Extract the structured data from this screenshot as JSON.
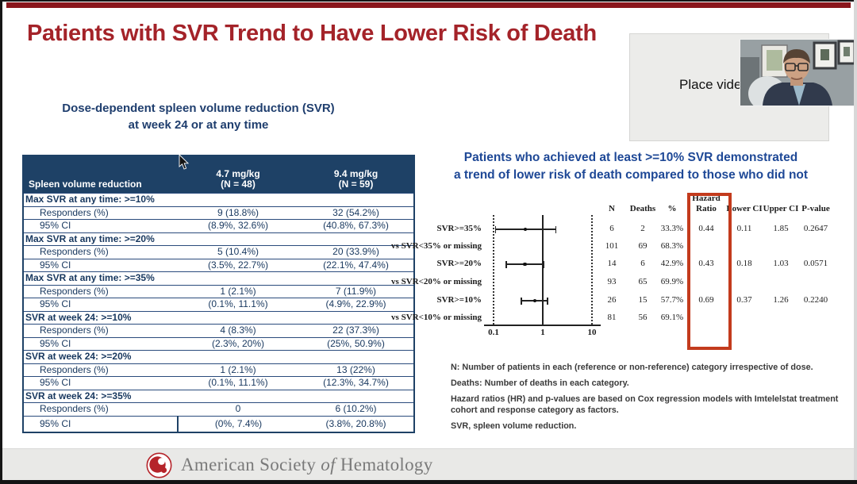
{
  "title": "Patients with SVR Trend to Have Lower Risk of Death",
  "video": {
    "placeholder_label": "Place video"
  },
  "left_panel": {
    "subtitle_line1": "Dose-dependent spleen volume reduction (SVR)",
    "subtitle_line2": "at week 24 or at any time"
  },
  "right_panel": {
    "heading_line1": "Patients who achieved at least >=10% SVR demonstrated",
    "heading_line2": "a trend of lower risk of death compared to those who did not",
    "footnotes": [
      "N: Number of patients in each (reference or non-reference) category irrespective of dose.",
      "Deaths: Number of deaths in each category.",
      "Hazard ratios (HR) and p-values are based on Cox regression models with Imtelelstat treatment cohort and response category as factors.",
      "SVR, spleen volume reduction."
    ]
  },
  "footer": {
    "org_name_pre": "American Society ",
    "org_name_italic": "of",
    "org_name_post": " Hematology"
  },
  "colors": {
    "title_red": "#a42329",
    "top_bar_red": "#8a161c",
    "table_header_navy": "#1e4166",
    "table_text_navy": "#17375e",
    "left_subtitle_blue": "#1f3e6e",
    "right_heading_blue": "#1e4896",
    "highlight_box_red": "#c33b1d",
    "footer_bg": "#e9e9e7"
  },
  "chart_data": [
    {
      "type": "table",
      "title": "Dose-dependent spleen volume reduction (SVR) at week 24 or at any time",
      "columns": [
        "Spleen volume reduction",
        "4.7 mg/kg (N = 48)",
        "9.4 mg/kg (N = 59)"
      ],
      "header": {
        "col1": "Spleen volume reduction",
        "col2_line1": "4.7 mg/kg",
        "col2_line2": "(N = 48)",
        "col3_line1": "9.4 mg/kg",
        "col3_line2": "(N = 59)"
      },
      "rows": [
        {
          "section": "Max SVR at any time: >=10%"
        },
        {
          "label": "Responders (%)",
          "values": [
            "9 (18.8%)",
            "32 (54.2%)"
          ]
        },
        {
          "label": "95% CI",
          "values": [
            "(8.9%, 32.6%)",
            "(40.8%, 67.3%)"
          ]
        },
        {
          "section": "Max SVR at any time: >=20%"
        },
        {
          "label": "Responders (%)",
          "values": [
            "5 (10.4%)",
            "20 (33.9%)"
          ]
        },
        {
          "label": "95% CI",
          "values": [
            "(3.5%, 22.7%)",
            "(22.1%, 47.4%)"
          ]
        },
        {
          "section": "Max SVR at any time: >=35%"
        },
        {
          "label": "Responders (%)",
          "values": [
            "1 (2.1%)",
            "7 (11.9%)"
          ]
        },
        {
          "label": "95% CI",
          "values": [
            "(0.1%, 11.1%)",
            "(4.9%, 22.9%)"
          ]
        },
        {
          "section": "SVR at week 24: >=10%"
        },
        {
          "label": "Responders (%)",
          "values": [
            "4 (8.3%)",
            "22 (37.3%)"
          ]
        },
        {
          "label": "95% CI",
          "values": [
            "(2.3%, 20%)",
            "(25%, 50.9%)"
          ]
        },
        {
          "section": "SVR at week 24: >=20%"
        },
        {
          "label": "Responders (%)",
          "values": [
            "1 (2.1%)",
            "13 (22%)"
          ]
        },
        {
          "label": "95% CI",
          "values": [
            "(0.1%, 11.1%)",
            "(12.3%, 34.7%)"
          ]
        },
        {
          "section": "SVR at week 24: >=35%"
        },
        {
          "label": "Responders (%)",
          "values": [
            "0",
            "6 (10.2%)"
          ]
        },
        {
          "label": "95% CI",
          "values": [
            "(0%, 7.4%)",
            "(3.8%, 20.8%)"
          ]
        }
      ]
    },
    {
      "type": "scatter",
      "subtype": "forest-plot",
      "x_axis": {
        "scale": "log10",
        "ticks": [
          "0.1",
          "1",
          "10"
        ],
        "range": [
          0.1,
          10
        ],
        "reference_line": 1
      },
      "columns": [
        "N",
        "Deaths",
        "%",
        "Hazard Ratio",
        "Lower CI",
        "Upper CI",
        "P-value"
      ],
      "rows": [
        {
          "label": "SVR>=35%",
          "n": "6",
          "deaths": "2",
          "pct": "33.3%",
          "hr": 0.44,
          "lower_ci": 0.11,
          "upper_ci": 1.85,
          "p_value": "0.2647"
        },
        {
          "label": "vs SVR<35% or missing",
          "n": "101",
          "deaths": "69",
          "pct": "68.3%"
        },
        {
          "label": "SVR>=20%",
          "n": "14",
          "deaths": "6",
          "pct": "42.9%",
          "hr": 0.43,
          "lower_ci": 0.18,
          "upper_ci": 1.03,
          "p_value": "0.0571"
        },
        {
          "label": "vs SVR<20% or missing",
          "n": "93",
          "deaths": "65",
          "pct": "69.9%"
        },
        {
          "label": "SVR>=10%",
          "n": "26",
          "deaths": "15",
          "pct": "57.7%",
          "hr": 0.69,
          "lower_ci": 0.37,
          "upper_ci": 1.26,
          "p_value": "0.2240"
        },
        {
          "label": "vs SVR<10% or missing",
          "n": "81",
          "deaths": "56",
          "pct": "69.1%"
        }
      ]
    }
  ]
}
